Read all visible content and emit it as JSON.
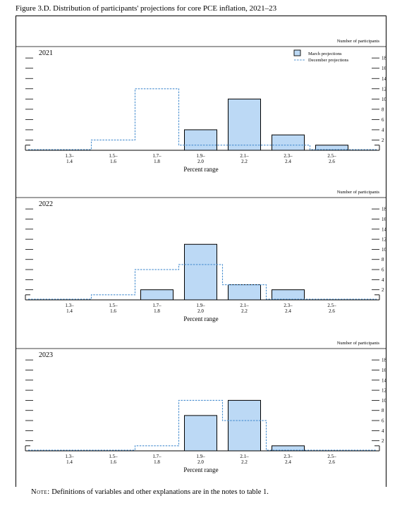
{
  "figure": {
    "title": "Figure 3.D. Distribution of participants' projections for core PCE inflation, 2021–23",
    "footnote_label": "Note:",
    "footnote_text": "Definitions of variables and other explanations are in the notes to table 1."
  },
  "chart_data": [
    {
      "type": "bar",
      "title": "2021",
      "categories": [
        "1.3–\n1.4",
        "1.5–\n1.6",
        "1.7–\n1.8",
        "1.9–\n2.0",
        "2.1–\n2.2",
        "2.3–\n2.4",
        "2.5–\n2.6"
      ],
      "series": [
        {
          "name": "March projections",
          "style": "bar",
          "color": "#bcd9f5",
          "values": [
            0,
            0,
            0,
            4,
            10,
            3,
            1
          ]
        },
        {
          "name": "December projections",
          "style": "dashed-step",
          "color": "#4a8fd0",
          "values": [
            0,
            2,
            12,
            1,
            1,
            1,
            0
          ]
        }
      ],
      "xlabel": "Percent range",
      "ylabel": "Number of participants",
      "ylim": [
        0,
        18
      ],
      "yticks": [
        2,
        4,
        6,
        8,
        10,
        12,
        14,
        16,
        18
      ],
      "legend": "top-right"
    },
    {
      "type": "bar",
      "title": "2022",
      "categories": [
        "1.3–\n1.4",
        "1.5–\n1.6",
        "1.7–\n1.8",
        "1.9–\n2.0",
        "2.1–\n2.2",
        "2.3–\n2.4",
        "2.5–\n2.6"
      ],
      "series": [
        {
          "name": "March projections",
          "style": "bar",
          "color": "#bcd9f5",
          "values": [
            0,
            0,
            2,
            11,
            3,
            2,
            0
          ]
        },
        {
          "name": "December projections",
          "style": "dashed-step",
          "color": "#4a8fd0",
          "values": [
            0,
            1,
            6,
            7,
            3,
            0,
            0
          ]
        }
      ],
      "xlabel": "Percent range",
      "ylabel": "Number of participants",
      "ylim": [
        0,
        18
      ],
      "yticks": [
        2,
        4,
        6,
        8,
        10,
        12,
        14,
        16,
        18
      ]
    },
    {
      "type": "bar",
      "title": "2023",
      "categories": [
        "1.3–\n1.4",
        "1.5–\n1.6",
        "1.7–\n1.8",
        "1.9–\n2.0",
        "2.1–\n2.2",
        "2.3–\n2.4",
        "2.5–\n2.6"
      ],
      "series": [
        {
          "name": "March projections",
          "style": "bar",
          "color": "#bcd9f5",
          "values": [
            0,
            0,
            0,
            7,
            10,
            1,
            0
          ]
        },
        {
          "name": "December projections",
          "style": "dashed-step",
          "color": "#4a8fd0",
          "values": [
            0,
            0,
            1,
            10,
            6,
            0,
            0
          ]
        }
      ],
      "xlabel": "Percent range",
      "ylabel": "Number of participants",
      "ylim": [
        0,
        18
      ],
      "yticks": [
        2,
        4,
        6,
        8,
        10,
        12,
        14,
        16,
        18
      ]
    }
  ]
}
